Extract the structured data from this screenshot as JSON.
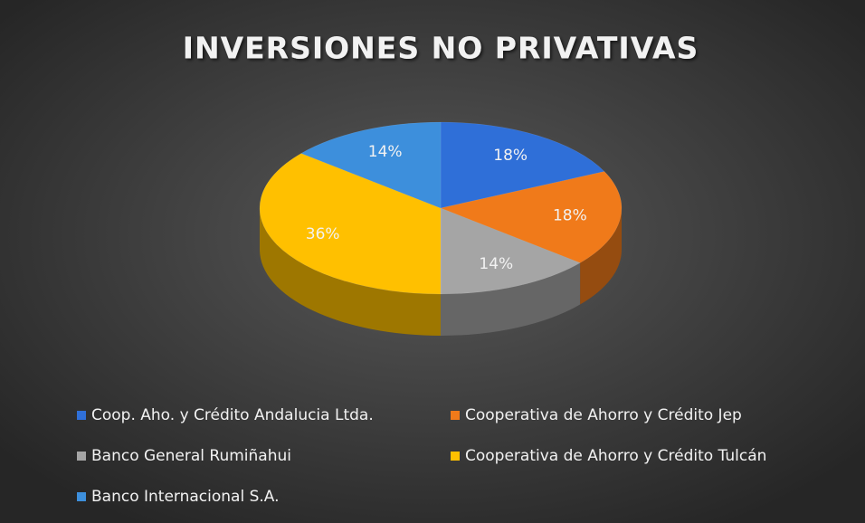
{
  "chart_data": {
    "type": "pie",
    "title": "INVERSIONES NO PRIVATIVAS",
    "categories": [
      "Coop. Aho. y Crédito Andalucia Ltda.",
      "Cooperativa de Ahorro y Crédito Jep",
      "Banco General Rumiñahui",
      "Cooperativa de Ahorro y Crédito Tulcán",
      "Banco Internacional S.A."
    ],
    "values": [
      18,
      18,
      14,
      36,
      14
    ],
    "value_labels": [
      "18%",
      "18%",
      "14%",
      "36%",
      "14%"
    ],
    "colors": [
      "#2f6fd8",
      "#f07a1a",
      "#a5a5a5",
      "#ffc000",
      "#3d8fdc"
    ],
    "legend": "bottom"
  }
}
